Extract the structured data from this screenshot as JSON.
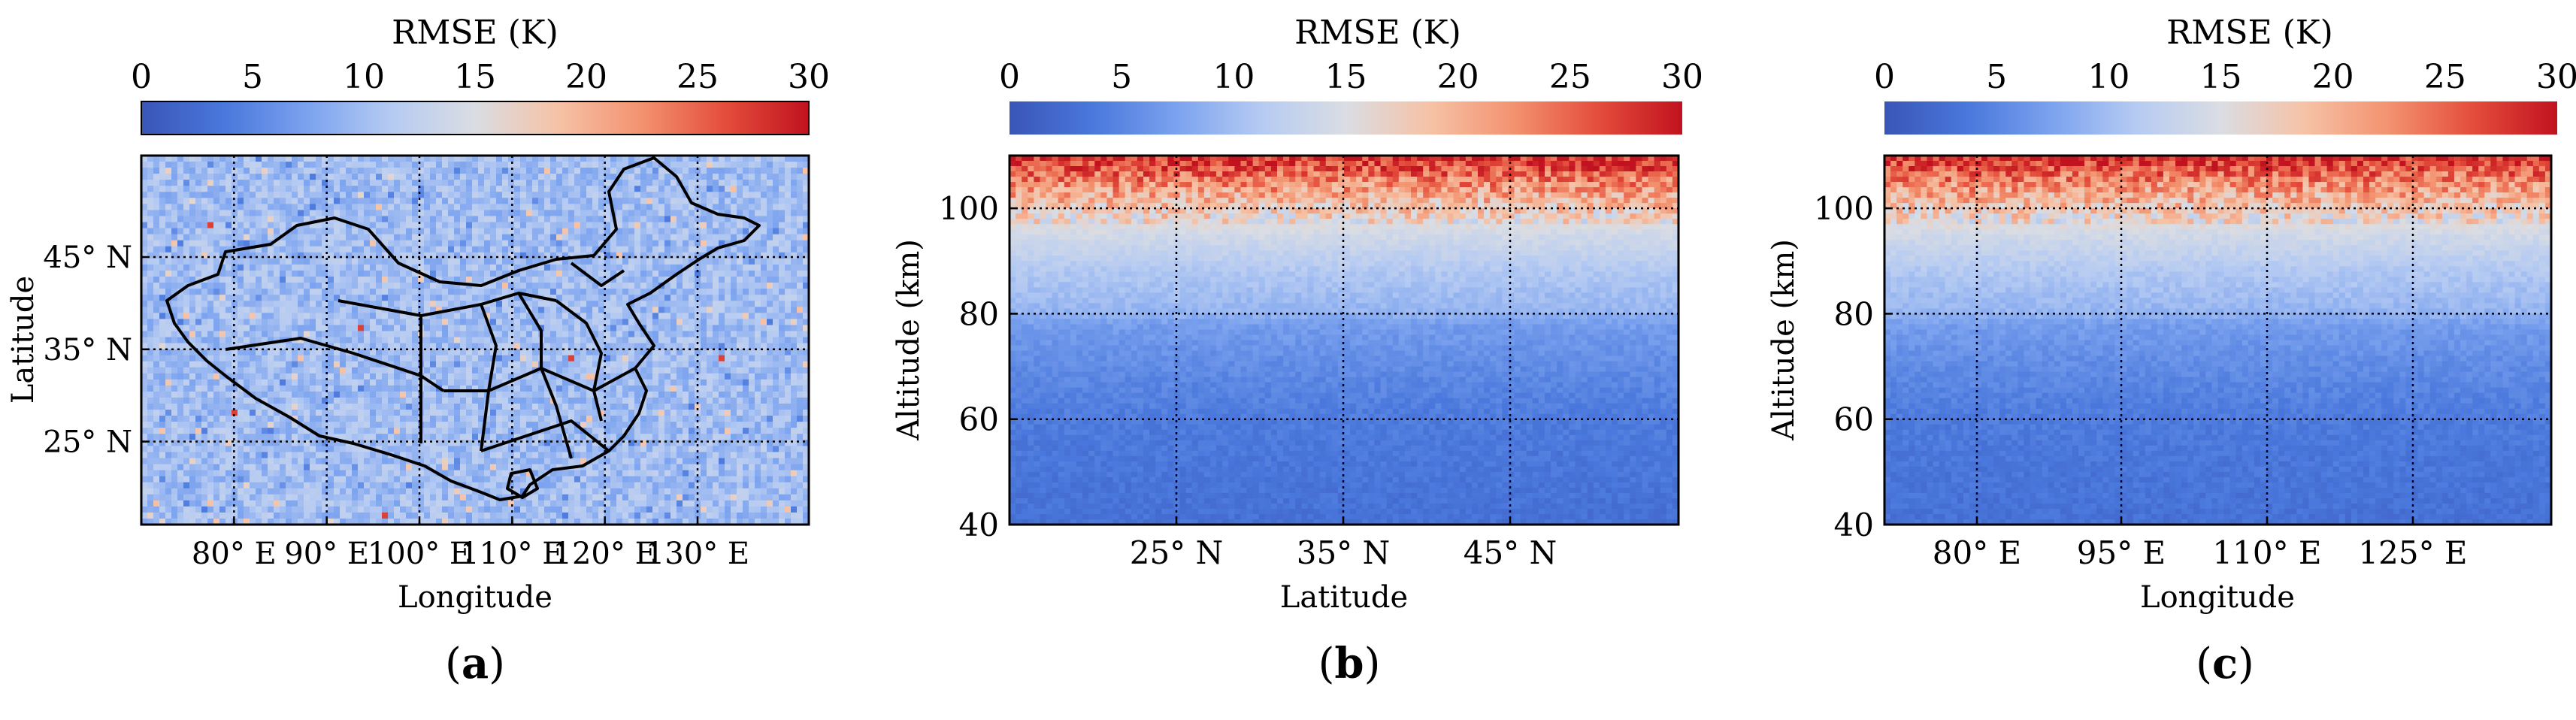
{
  "colors": {
    "scale": [
      "#3a55b8",
      "#4a78dc",
      "#7ca3ef",
      "#b6cbf2",
      "#dadde3",
      "#f6c2a6",
      "#f3926f",
      "#e44d3b",
      "#c1121f"
    ]
  },
  "chart_data": [
    {
      "id": "a",
      "type": "heatmap",
      "panel_label": "a",
      "colorbar": {
        "title": "RMSE (K)",
        "range": [
          0,
          30
        ],
        "ticks": [
          "0",
          "5",
          "10",
          "15",
          "20",
          "25",
          "30"
        ]
      },
      "xlabel": "Longitude",
      "ylabel": "Latitude",
      "x_ticks": [
        "80° E",
        "90° E",
        "100° E",
        "110° E",
        "120° E",
        "130° E"
      ],
      "y_ticks": [
        "45° N",
        "35° N",
        "25° N"
      ],
      "xlim": [
        70,
        142
      ],
      "ylim": [
        16,
        56
      ],
      "grid": "dotted",
      "typical_value": 10
    },
    {
      "id": "b",
      "type": "heatmap",
      "panel_label": "b",
      "colorbar": {
        "title": "RMSE (K)",
        "range": [
          0,
          30
        ],
        "ticks": [
          "0",
          "5",
          "10",
          "15",
          "20",
          "25",
          "30"
        ]
      },
      "xlabel": "Latitude",
      "ylabel": "Altitude (km)",
      "x_ticks": [
        "25° N",
        "35° N",
        "45° N"
      ],
      "y_ticks": [
        "100",
        "80",
        "60",
        "40"
      ],
      "ylim": [
        40,
        110
      ],
      "grid": "dotted",
      "altitude_profile": [
        {
          "alt": 40,
          "rmse": 3
        },
        {
          "alt": 50,
          "rmse": 3.5
        },
        {
          "alt": 60,
          "rmse": 4
        },
        {
          "alt": 70,
          "rmse": 5.5
        },
        {
          "alt": 78,
          "rmse": 7
        },
        {
          "alt": 80,
          "rmse": 9
        },
        {
          "alt": 88,
          "rmse": 11
        },
        {
          "alt": 95,
          "rmse": 14
        },
        {
          "alt": 100,
          "rmse": 18
        },
        {
          "alt": 105,
          "rmse": 23
        },
        {
          "alt": 110,
          "rmse": 29
        }
      ]
    },
    {
      "id": "c",
      "type": "heatmap",
      "panel_label": "c",
      "colorbar": {
        "title": "RMSE (K)",
        "range": [
          0,
          30
        ],
        "ticks": [
          "0",
          "5",
          "10",
          "15",
          "20",
          "25",
          "30"
        ]
      },
      "xlabel": "Longitude",
      "ylabel": "Altitude (km)",
      "x_ticks": [
        "80° E",
        "95° E",
        "110° E",
        "125° E"
      ],
      "y_ticks": [
        "100",
        "80",
        "60",
        "40"
      ],
      "ylim": [
        40,
        110
      ],
      "grid": "dotted",
      "altitude_profile": [
        {
          "alt": 40,
          "rmse": 3
        },
        {
          "alt": 50,
          "rmse": 3.5
        },
        {
          "alt": 60,
          "rmse": 4
        },
        {
          "alt": 70,
          "rmse": 5.5
        },
        {
          "alt": 78,
          "rmse": 7
        },
        {
          "alt": 80,
          "rmse": 9
        },
        {
          "alt": 88,
          "rmse": 11
        },
        {
          "alt": 95,
          "rmse": 14
        },
        {
          "alt": 100,
          "rmse": 18
        },
        {
          "alt": 105,
          "rmse": 23
        },
        {
          "alt": 110,
          "rmse": 29
        }
      ]
    }
  ]
}
